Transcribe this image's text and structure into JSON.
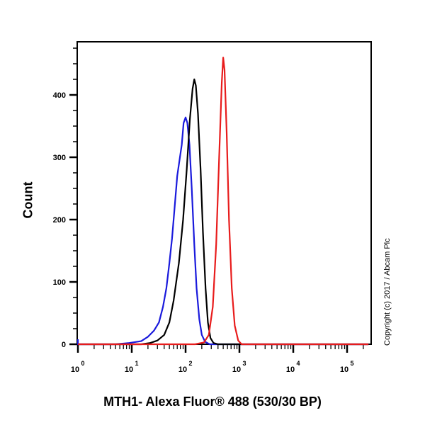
{
  "chart_data": {
    "type": "line",
    "title": "",
    "xlabel": "MTH1- Alexa Fluor® 488 (530/30 BP)",
    "ylabel": "Count",
    "xscale": "log",
    "xlim": [
      0.5,
      250000
    ],
    "ylim": [
      0,
      475
    ],
    "x_tick_labels": [
      "10^0",
      "10^1",
      "10^2",
      "10^3",
      "10^4",
      "10^5"
    ],
    "y_ticks": [
      0,
      100,
      200,
      300,
      400
    ],
    "grid": false,
    "legend": "none",
    "annotation": "Copyright (c) 2017 / Abcam Plc",
    "series": [
      {
        "name": "blue",
        "color": "#1a1adc",
        "points": [
          [
            0.5,
            8
          ],
          [
            0.6,
            4
          ],
          [
            0.7,
            0
          ],
          [
            5,
            0
          ],
          [
            9,
            2
          ],
          [
            15,
            5
          ],
          [
            20,
            12
          ],
          [
            26,
            22
          ],
          [
            32,
            35
          ],
          [
            38,
            60
          ],
          [
            44,
            90
          ],
          [
            50,
            130
          ],
          [
            56,
            170
          ],
          [
            62,
            215
          ],
          [
            70,
            270
          ],
          [
            77,
            295
          ],
          [
            85,
            320
          ],
          [
            92,
            355
          ],
          [
            100,
            364
          ],
          [
            108,
            355
          ],
          [
            118,
            320
          ],
          [
            130,
            250
          ],
          [
            145,
            160
          ],
          [
            160,
            90
          ],
          [
            180,
            40
          ],
          [
            200,
            15
          ],
          [
            230,
            4
          ],
          [
            280,
            0
          ],
          [
            250000,
            0
          ]
        ]
      },
      {
        "name": "black",
        "color": "#000000",
        "points": [
          [
            0.5,
            0
          ],
          [
            15,
            0
          ],
          [
            22,
            2
          ],
          [
            30,
            6
          ],
          [
            40,
            15
          ],
          [
            50,
            35
          ],
          [
            60,
            70
          ],
          [
            75,
            130
          ],
          [
            90,
            200
          ],
          [
            105,
            280
          ],
          [
            120,
            360
          ],
          [
            135,
            410
          ],
          [
            145,
            425
          ],
          [
            155,
            415
          ],
          [
            170,
            370
          ],
          [
            190,
            280
          ],
          [
            210,
            180
          ],
          [
            235,
            90
          ],
          [
            260,
            35
          ],
          [
            290,
            10
          ],
          [
            330,
            2
          ],
          [
            400,
            0
          ],
          [
            250000,
            0
          ]
        ]
      },
      {
        "name": "red",
        "color": "#e81c1c",
        "points": [
          [
            0.5,
            0
          ],
          [
            150,
            0
          ],
          [
            220,
            3
          ],
          [
            270,
            15
          ],
          [
            320,
            60
          ],
          [
            370,
            160
          ],
          [
            420,
            300
          ],
          [
            470,
            420
          ],
          [
            500,
            460
          ],
          [
            530,
            440
          ],
          [
            580,
            340
          ],
          [
            640,
            200
          ],
          [
            720,
            90
          ],
          [
            820,
            30
          ],
          [
            950,
            6
          ],
          [
            1100,
            0
          ],
          [
            250000,
            0
          ]
        ]
      }
    ]
  }
}
